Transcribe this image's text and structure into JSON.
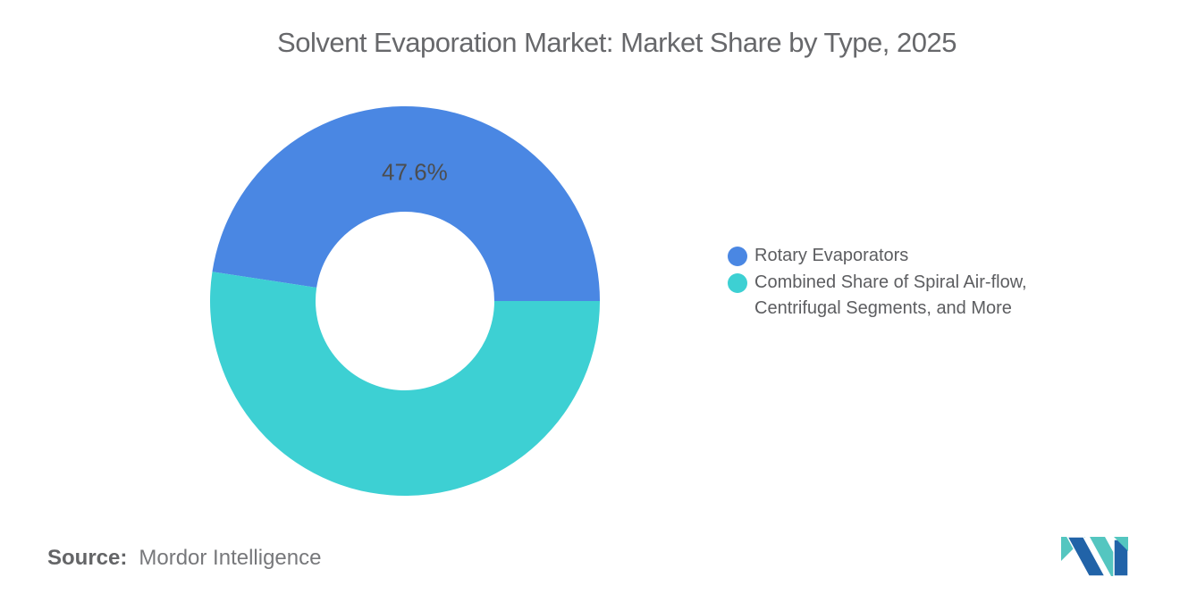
{
  "header": {
    "title": "Solvent Evaporation Market: Market Share by Type, 2025"
  },
  "chart_data": {
    "type": "pie",
    "subtype": "donut",
    "title": "Solvent Evaporation Market: Market Share by Type, 2025",
    "unit": "%",
    "slices": [
      {
        "label": "Rotary Evaporators",
        "value": 47.6,
        "color": "#4A87E3",
        "data_label": "47.6%"
      },
      {
        "label": "Combined Share of Spiral Air-flow, Centrifugal Segments, and More",
        "value": 52.4,
        "color": "#3DD0D3",
        "data_label": null
      }
    ],
    "start_angle_deg": 0,
    "direction": "counterclockwise",
    "donut_hole_ratio": 0.46,
    "legend_position": "right",
    "grid": false,
    "data_label_color": "#4c4d4f"
  },
  "footer": {
    "source_label": "Source:",
    "source_value": "Mordor Intelligence"
  },
  "branding": {
    "logo_name": "mordor-intelligence-logo",
    "logo_teal": "#54C6C0",
    "logo_blue": "#2163A8"
  }
}
